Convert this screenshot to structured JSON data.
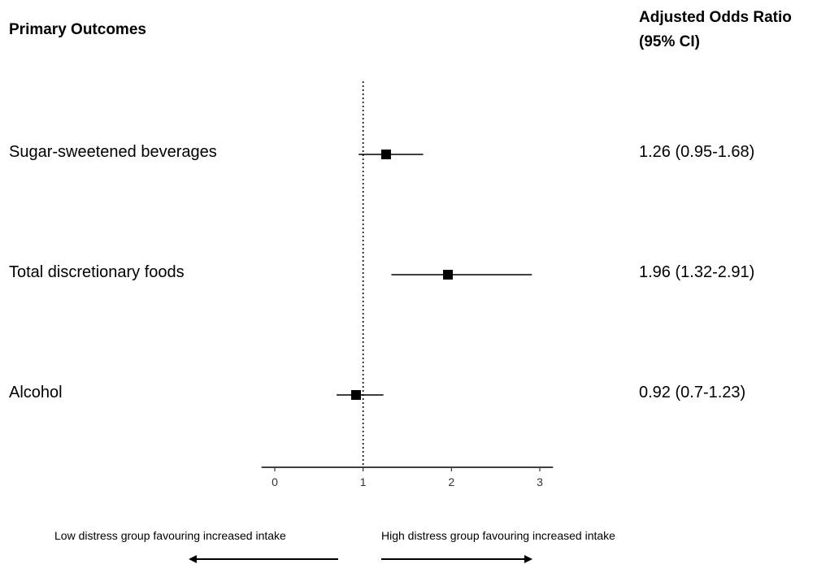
{
  "header": {
    "left_title": "Primary Outcomes",
    "right_title_line1": "Adjusted Odds Ratio",
    "right_title_line2": "(95% CI)"
  },
  "rows": [
    {
      "label": "Sugar-sweetened beverages",
      "value_text": "1.26 (0.95-1.68)"
    },
    {
      "label": "Total discretionary foods",
      "value_text": "1.96 (1.32-2.91)"
    },
    {
      "label": "Alcohol",
      "value_text": "0.92 (0.7-1.23)"
    }
  ],
  "footer": {
    "left_text": "Low distress group favouring increased intake",
    "right_text": "High distress group favouring increased intake"
  },
  "chart_data": {
    "type": "forest",
    "xlim": [
      -0.15,
      3.15
    ],
    "x_ticks": [
      0,
      1,
      2,
      3
    ],
    "reference_line": 1,
    "categories": [
      "Sugar-sweetened beverages",
      "Total discretionary foods",
      "Alcohol"
    ],
    "estimates": [
      1.26,
      1.96,
      0.92
    ],
    "ci_lower": [
      0.95,
      1.32,
      0.7
    ],
    "ci_upper": [
      1.68,
      2.91,
      1.23
    ],
    "colors": {
      "marker": "#000000",
      "axis": "#000000"
    }
  }
}
